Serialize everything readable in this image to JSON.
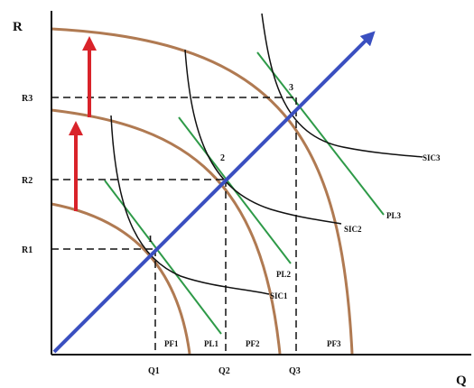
{
  "axes": {
    "y_title": "R",
    "x_title": "Q"
  },
  "y_ticks": [
    "R3",
    "R2",
    "R1"
  ],
  "x_ticks": [
    "Q1",
    "Q2",
    "Q3"
  ],
  "points": [
    "1",
    "2",
    "3"
  ],
  "curve_labels": {
    "sic3": "SIC3",
    "sic2": "SIC2",
    "sic1": "SIC1",
    "pl3": "PL3",
    "pl2": "PL2",
    "pl1": "PL1",
    "pf1": "PF1",
    "pf2": "PF2",
    "pf3": "PF3"
  },
  "colors": {
    "ppf": "#b07a52",
    "expansion_path": "#3a4fc0",
    "shift_arrows": "#d9232a",
    "price_lines": "#2e9a48",
    "indifference": "#111111",
    "guides": "#111111"
  }
}
